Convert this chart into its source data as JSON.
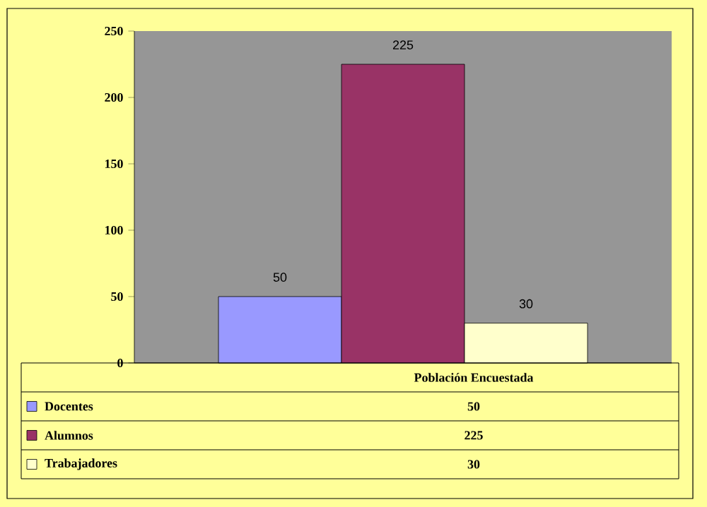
{
  "chart_data": {
    "type": "bar",
    "categories": [
      "Población Encuestada"
    ],
    "series": [
      {
        "name": "Docentes",
        "color": "#9999ff",
        "values": [
          50
        ]
      },
      {
        "name": "Alumnos",
        "color": "#993366",
        "values": [
          225
        ]
      },
      {
        "name": "Trabajadores",
        "color": "#ffffcc",
        "values": [
          30
        ]
      }
    ],
    "ylim": [
      0,
      250
    ],
    "yticks": [
      0,
      50,
      100,
      150,
      200,
      250
    ],
    "grid": false,
    "legend": "bottom left",
    "data_labels": true,
    "annotations": [
      "50",
      "225",
      "30"
    ]
  }
}
